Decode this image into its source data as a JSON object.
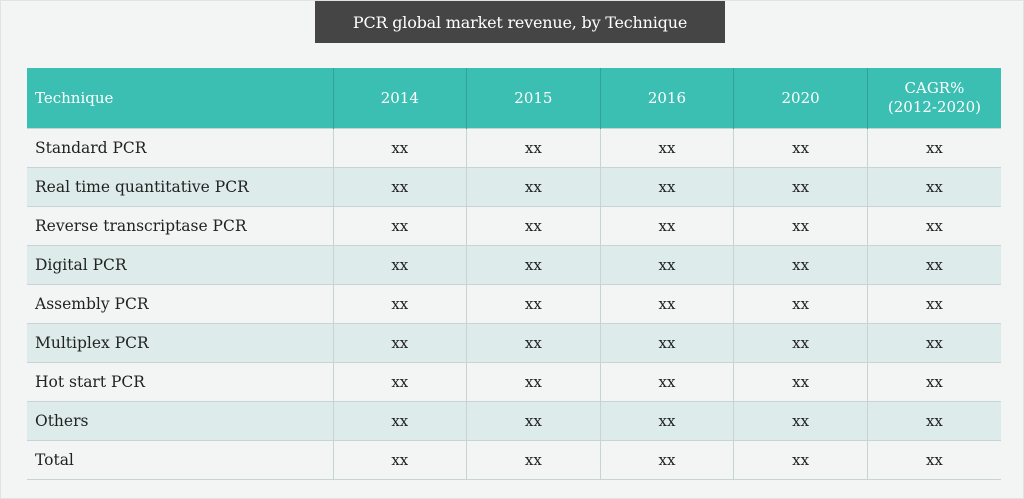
{
  "title": "PCR global market revenue, by Technique",
  "table": {
    "header": {
      "technique": "Technique",
      "years": [
        "2014",
        "2015",
        "2016",
        "2020"
      ],
      "cagr_line1": "CAGR%",
      "cagr_line2": "(2012-2020)"
    },
    "rows": [
      {
        "label": "Standard PCR",
        "values": [
          "xx",
          "xx",
          "xx",
          "xx",
          "xx"
        ]
      },
      {
        "label": "Real time quantitative PCR",
        "values": [
          "xx",
          "xx",
          "xx",
          "xx",
          "xx"
        ]
      },
      {
        "label": "Reverse transcriptase PCR",
        "values": [
          "xx",
          "xx",
          "xx",
          "xx",
          "xx"
        ]
      },
      {
        "label": "Digital PCR",
        "values": [
          "xx",
          "xx",
          "xx",
          "xx",
          "xx"
        ]
      },
      {
        "label": "Assembly PCR",
        "values": [
          "xx",
          "xx",
          "xx",
          "xx",
          "xx"
        ]
      },
      {
        "label": "Multiplex PCR",
        "values": [
          "xx",
          "xx",
          "xx",
          "xx",
          "xx"
        ]
      },
      {
        "label": "Hot start PCR",
        "values": [
          "xx",
          "xx",
          "xx",
          "xx",
          "xx"
        ]
      },
      {
        "label": "Others",
        "values": [
          "xx",
          "xx",
          "xx",
          "xx",
          "xx"
        ]
      },
      {
        "label": "Total",
        "values": [
          "xx",
          "xx",
          "xx",
          "xx",
          "xx"
        ]
      }
    ]
  },
  "colors": {
    "title_background": "#454545",
    "header_background": "#3bbfb3",
    "row_stripe": "#ddecea",
    "row_plain": "#f3f4f4"
  }
}
